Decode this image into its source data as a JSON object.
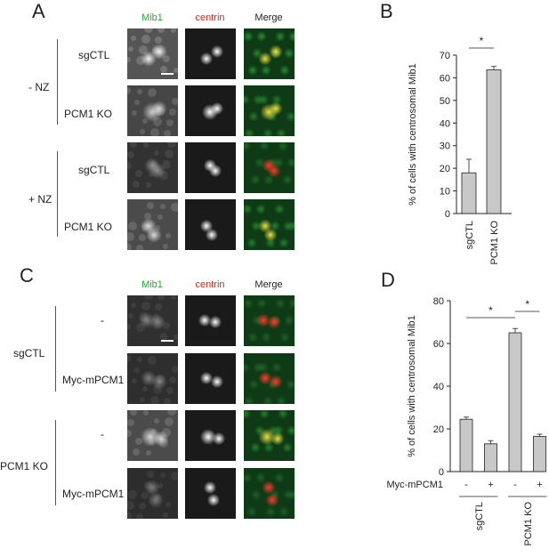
{
  "panel_letters": {
    "a": "A",
    "b": "B",
    "c": "C",
    "d": "D"
  },
  "channels": {
    "mib1": "Mib1",
    "centrin": "centrin",
    "merge": "Merge"
  },
  "colors": {
    "mib1": "#2aa836",
    "centrin": "#d9251c",
    "bar_fill": "#c8c8c8",
    "axis": "#222222"
  },
  "panel_a": {
    "condition_minus": "- NZ",
    "condition_plus": "+ NZ",
    "rows": [
      {
        "label": "sgCTL",
        "scale_bar": true
      },
      {
        "label": "PCM1 KO",
        "scale_bar": false
      },
      {
        "label": "sgCTL",
        "scale_bar": false
      },
      {
        "label": "PCM1 KO",
        "scale_bar": false
      }
    ]
  },
  "panel_c": {
    "group_sgctl": "sgCTL",
    "group_ko": "PCM1 KO",
    "rows": [
      {
        "label": "-",
        "scale_bar": true
      },
      {
        "label": "Myc-mPCM1",
        "scale_bar": false
      },
      {
        "label": "-",
        "scale_bar": false
      },
      {
        "label": "Myc-mPCM1",
        "scale_bar": false
      }
    ]
  },
  "chart_data": [
    {
      "type": "bar",
      "panel": "B",
      "ylabel": "% of cells with centrosomal Mib1",
      "categories": [
        "sgCTL",
        "PCM1 KO"
      ],
      "values": [
        18,
        63.5
      ],
      "errors": [
        6,
        1.5
      ],
      "ylim": [
        0,
        70
      ],
      "yticks": [
        0,
        10,
        20,
        30,
        40,
        50,
        60,
        70
      ],
      "significance": [
        {
          "from": 0,
          "to": 1,
          "label": "*"
        }
      ]
    },
    {
      "type": "bar",
      "panel": "D",
      "ylabel": "% of cells with centrosomal Mib1",
      "categories": [
        "-",
        "+",
        "-",
        "+"
      ],
      "row_label": "Myc-mPCM1",
      "groups": [
        {
          "label": "sgCTL",
          "indices": [
            0,
            1
          ]
        },
        {
          "label": "PCM1 KO",
          "indices": [
            2,
            3
          ]
        }
      ],
      "values": [
        24.5,
        13,
        65,
        16.5
      ],
      "errors": [
        1,
        1.5,
        2,
        1
      ],
      "ylim": [
        0,
        80
      ],
      "yticks": [
        0,
        20,
        40,
        60,
        80
      ],
      "significance": [
        {
          "from": 0,
          "to": 2,
          "label": "*"
        },
        {
          "from": 2,
          "to": 3,
          "label": "*"
        }
      ]
    }
  ]
}
